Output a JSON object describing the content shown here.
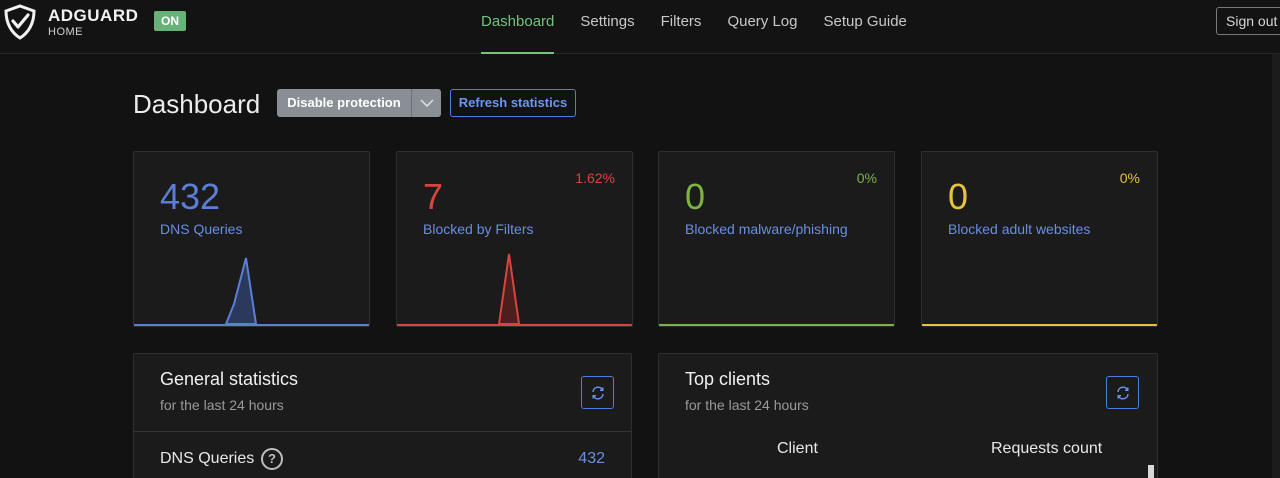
{
  "app": {
    "brand": "ADGUARD",
    "brand_sub": "HOME",
    "status_badge": "ON",
    "colors": {
      "accent_green": "#74c27e",
      "accent_blue": "#6a8fe0",
      "red": "#d9443f",
      "yellow": "#e7c33d",
      "lime": "#7cb342"
    }
  },
  "nav": {
    "items": [
      {
        "label": "Dashboard",
        "active": true
      },
      {
        "label": "Settings",
        "active": false
      },
      {
        "label": "Filters",
        "active": false
      },
      {
        "label": "Query Log",
        "active": false
      },
      {
        "label": "Setup Guide",
        "active": false
      }
    ],
    "signout": "Sign out"
  },
  "page": {
    "title": "Dashboard",
    "disable_button": "Disable protection",
    "refresh_button": "Refresh statistics"
  },
  "cards": [
    {
      "value": "432",
      "label": "DNS Queries",
      "percent": "",
      "color": "#5b7fd6"
    },
    {
      "value": "7",
      "label": "Blocked by Filters",
      "percent": "1.62%",
      "color": "#d9443f"
    },
    {
      "value": "0",
      "label": "Blocked malware/phishing",
      "percent": "0%",
      "color": "#7cb342"
    },
    {
      "value": "0",
      "label": "Blocked adult websites",
      "percent": "0%",
      "color": "#e7c33d"
    }
  ],
  "general_stats": {
    "title": "General statistics",
    "subtitle": "for the last 24 hours",
    "rows": [
      {
        "label": "DNS Queries",
        "value": "432"
      }
    ]
  },
  "top_clients": {
    "title": "Top clients",
    "subtitle": "for the last 24 hours",
    "columns": [
      "Client",
      "Requests count"
    ]
  }
}
